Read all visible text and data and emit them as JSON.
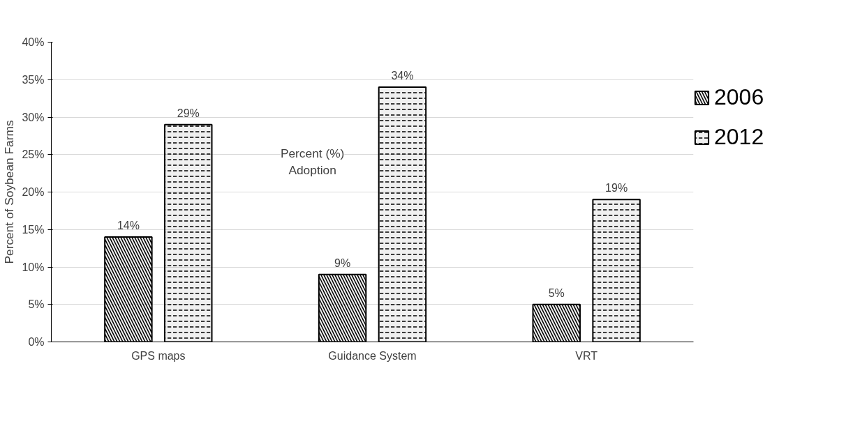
{
  "chart_data": {
    "type": "bar",
    "ylabel": "Percent of Soybean Farms",
    "annotations": [
      "Percent (%)\nAdoption"
    ],
    "categories": [
      "GPS maps",
      "Guidance System",
      "VRT"
    ],
    "series": [
      {
        "name": "2006",
        "color": "#000000",
        "values": [
          14,
          9,
          5
        ],
        "value_labels": [
          "14%",
          "9%",
          "5%"
        ]
      },
      {
        "name": "2012",
        "color": "#000000",
        "values": [
          29,
          34,
          19
        ],
        "value_labels": [
          "29%",
          "34%",
          "19%"
        ]
      }
    ],
    "ylim": [
      0,
      40
    ],
    "yticks": [
      {
        "value": 0,
        "label": "0%"
      },
      {
        "value": 5,
        "label": "5%"
      },
      {
        "value": 10,
        "label": "10%"
      },
      {
        "value": 15,
        "label": "15%"
      },
      {
        "value": 20,
        "label": "20%"
      },
      {
        "value": 25,
        "label": "25%"
      },
      {
        "value": 30,
        "label": "30%"
      },
      {
        "value": 35,
        "label": "35%"
      },
      {
        "value": 40,
        "label": "40%"
      }
    ],
    "grid": "y",
    "legend": "right"
  }
}
